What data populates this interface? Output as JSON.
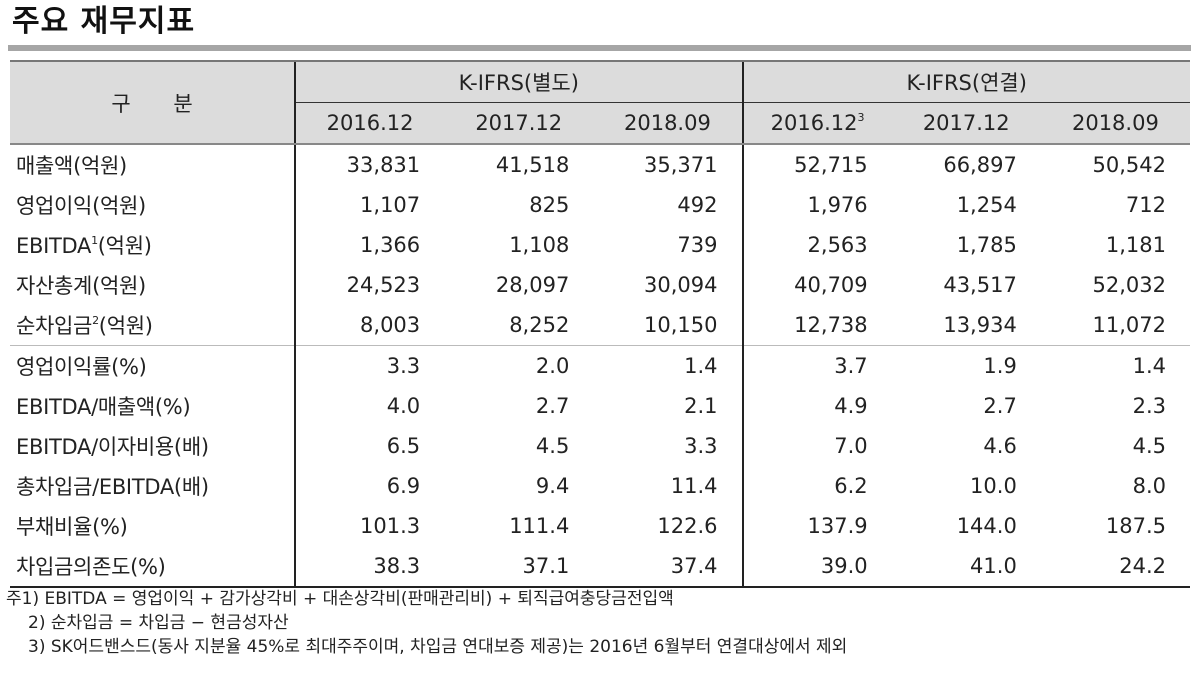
{
  "title": "주요 재무지표",
  "table": {
    "row_header_label": "구 분",
    "groups": [
      {
        "label": "K-IFRS(별도)",
        "periods": [
          {
            "label": "2016.12",
            "sup": ""
          },
          {
            "label": "2017.12",
            "sup": ""
          },
          {
            "label": "2018.09",
            "sup": ""
          }
        ]
      },
      {
        "label": "K-IFRS(연결)",
        "periods": [
          {
            "label": "2016.12",
            "sup": "3"
          },
          {
            "label": "2017.12",
            "sup": ""
          },
          {
            "label": "2018.09",
            "sup": ""
          }
        ]
      }
    ],
    "rows": [
      {
        "label": "매출액",
        "sup": "",
        "unit": "(억원)",
        "values": [
          "33,831",
          "41,518",
          "35,371",
          "52,715",
          "66,897",
          "50,542"
        ]
      },
      {
        "label": "영업이익",
        "sup": "",
        "unit": "(억원)",
        "values": [
          "1,107",
          "825",
          "492",
          "1,976",
          "1,254",
          "712"
        ]
      },
      {
        "label": "EBITDA",
        "sup": "1",
        "unit": "(억원)",
        "values": [
          "1,366",
          "1,108",
          "739",
          "2,563",
          "1,785",
          "1,181"
        ]
      },
      {
        "label": "자산총계",
        "sup": "",
        "unit": "(억원)",
        "values": [
          "24,523",
          "28,097",
          "30,094",
          "40,709",
          "43,517",
          "52,032"
        ]
      },
      {
        "label": "순차입금",
        "sup": "2",
        "unit": "(억원)",
        "values": [
          "8,003",
          "8,252",
          "10,150",
          "12,738",
          "13,934",
          "11,072"
        ]
      },
      {
        "label": "영업이익률",
        "sup": "",
        "unit": "(%)",
        "values": [
          "3.3",
          "2.0",
          "1.4",
          "3.7",
          "1.9",
          "1.4"
        ]
      },
      {
        "label": "EBITDA/매출액",
        "sup": "",
        "unit": "(%)",
        "values": [
          "4.0",
          "2.7",
          "2.1",
          "4.9",
          "2.7",
          "2.3"
        ]
      },
      {
        "label": "EBITDA/이자비용",
        "sup": "",
        "unit": "(배)",
        "values": [
          "6.5",
          "4.5",
          "3.3",
          "7.0",
          "4.6",
          "4.5"
        ]
      },
      {
        "label": "총차입금/EBITDA",
        "sup": "",
        "unit": "(배)",
        "values": [
          "6.9",
          "9.4",
          "11.4",
          "6.2",
          "10.0",
          "8.0"
        ]
      },
      {
        "label": "부채비율",
        "sup": "",
        "unit": "(%)",
        "values": [
          "101.3",
          "111.4",
          "122.6",
          "137.9",
          "144.0",
          "187.5"
        ]
      },
      {
        "label": "차입금의존도",
        "sup": "",
        "unit": "(%)",
        "values": [
          "38.3",
          "37.1",
          "37.4",
          "39.0",
          "41.0",
          "24.2"
        ]
      }
    ]
  },
  "notes": [
    "주1) EBITDA = 영업이익 + 감가상각비 + 대손상각비(판매관리비) + 퇴직급여충당금전입액",
    "2) 순차입금 = 차입금 − 현금성자산",
    "3) SK어드밴스드(동사 지분율 45%로 최대주주이며, 차입금 연대보증 제공)는 2016년 6월부터 연결대상에서 제외"
  ],
  "colors": {
    "header_bg": "#dcdcdc",
    "title_bar": "#a6a6a6",
    "text": "#222222"
  }
}
